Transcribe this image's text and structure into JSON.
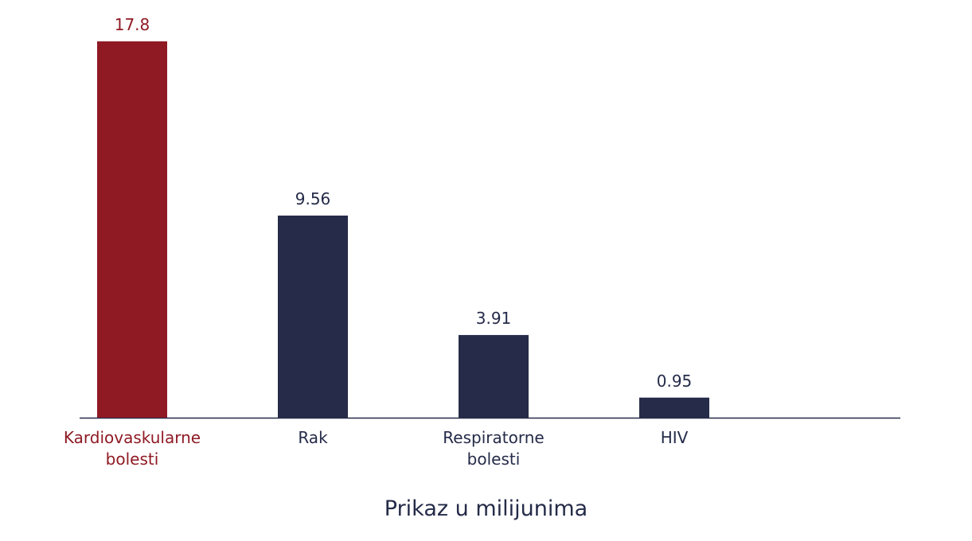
{
  "chart_data": {
    "type": "bar",
    "x_label": "Prikaz u milijunima",
    "categories": [
      "Kardiovaskularne bolesti",
      "Rak",
      "Respiratorne bolesti",
      "HIV"
    ],
    "values": [
      17.8,
      9.56,
      3.91,
      0.95
    ],
    "colors": [
      "#8f1a24",
      "#252b48",
      "#252b48",
      "#252b48"
    ]
  }
}
